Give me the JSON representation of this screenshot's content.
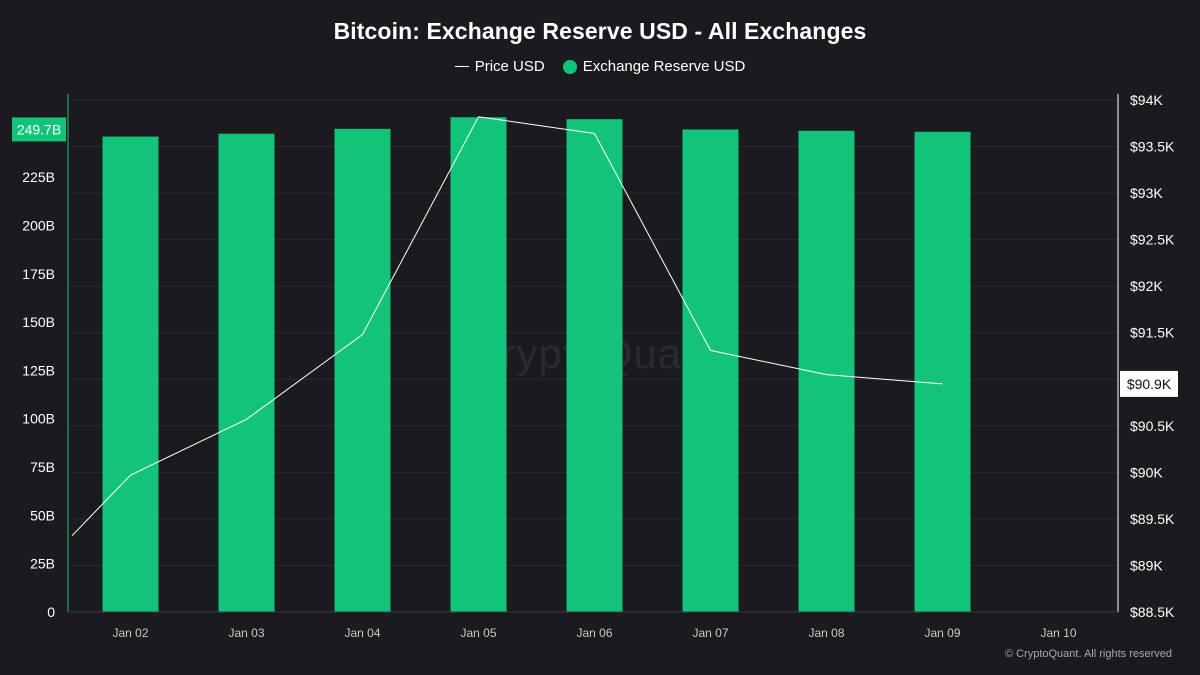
{
  "title": "Bitcoin: Exchange Reserve USD - All Exchanges",
  "legend": {
    "price_label": "Price USD",
    "reserve_label": "Exchange Reserve USD"
  },
  "watermark": "CryptoQuant",
  "copyright": "© CryptoQuant. All rights reserved",
  "colors": {
    "background": "#1b1b1f",
    "bar": "#12c47a",
    "price_line": "#ffffff",
    "left_axis": "#12c47a",
    "right_axis": "#ffffff"
  },
  "chart_data": {
    "type": "bar",
    "title": "Bitcoin: Exchange Reserve USD - All Exchanges",
    "categories": [
      "Jan 02",
      "Jan 03",
      "Jan 04",
      "Jan 05",
      "Jan 06",
      "Jan 07",
      "Jan 08",
      "Jan 09",
      "Jan 10"
    ],
    "series": [
      {
        "name": "Exchange Reserve USD",
        "type": "bar",
        "axis": "left",
        "values": [
          246,
          247.5,
          250,
          256,
          255,
          249.7,
          249,
          248.5,
          null
        ]
      },
      {
        "name": "Price USD",
        "type": "line",
        "axis": "right",
        "x_positions": [
          0.5,
          1,
          2,
          3,
          4,
          5,
          6,
          7,
          8
        ],
        "values": [
          89320,
          89970,
          90570,
          91480,
          93820,
          93640,
          91310,
          91050,
          90950
        ]
      }
    ],
    "left_axis": {
      "ticks": [
        0,
        25,
        50,
        75,
        100,
        125,
        150,
        175,
        200,
        225
      ],
      "tick_labels": [
        "0",
        "25B",
        "50B",
        "75B",
        "100B",
        "125B",
        "150B",
        "175B",
        "200B",
        "225B"
      ],
      "ylim": [
        0,
        267
      ],
      "marker_value": 249.7,
      "marker_label": "249.7B"
    },
    "right_axis": {
      "ticks": [
        88500,
        89000,
        89500,
        90000,
        90500,
        91000,
        91500,
        92000,
        92500,
        93000,
        93500,
        94000
      ],
      "tick_labels": [
        "$88.5K",
        "$89K",
        "$89.5K",
        "$90K",
        "$90.5K",
        "$91K",
        "$91.5K",
        "$92K",
        "$92.5K",
        "$93K",
        "$93.5K",
        "$94K"
      ],
      "ylim": [
        88500,
        94000
      ],
      "marker_value": 90950,
      "marker_label": "$90.9K"
    },
    "grid": "horizontal"
  }
}
